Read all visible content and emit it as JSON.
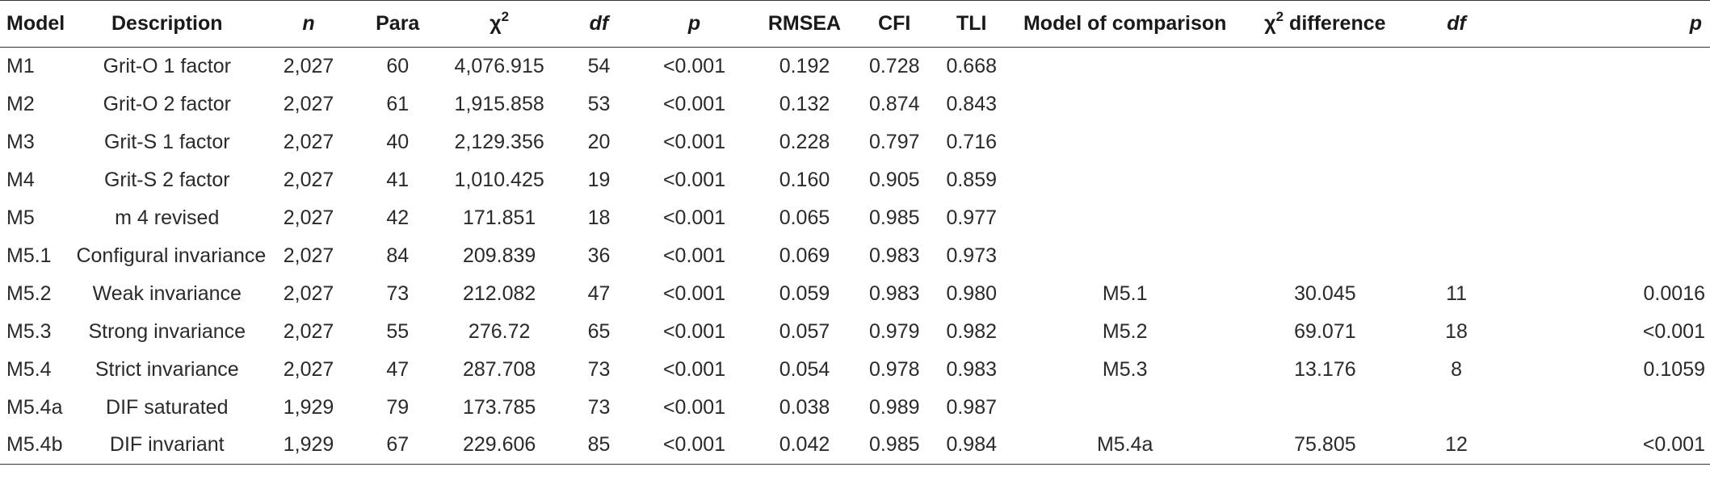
{
  "headers": {
    "model": "Model",
    "description": "Description",
    "n": "n",
    "para": "Para",
    "chi": "χ",
    "chi_sup": "2",
    "df": "df",
    "p": "p",
    "rmsea": "RMSEA",
    "cfi": "CFI",
    "tli": "TLI",
    "comparison": "Model of comparison",
    "chidiff_prefix": "χ",
    "chidiff_sup": "2",
    "chidiff_suffix": " difference",
    "df2": "df",
    "p2": "p"
  },
  "rows": [
    {
      "model": "M1",
      "desc": "Grit-O 1 factor",
      "n": "2,027",
      "para": "60",
      "chi2": "4,076.915",
      "df": "54",
      "p": "<0.001",
      "rmsea": "0.192",
      "cfi": "0.728",
      "tli": "0.668",
      "comp": "",
      "chidiff": "",
      "df2": "",
      "p2": ""
    },
    {
      "model": "M2",
      "desc": "Grit-O 2 factor",
      "n": "2,027",
      "para": "61",
      "chi2": "1,915.858",
      "df": "53",
      "p": "<0.001",
      "rmsea": "0.132",
      "cfi": "0.874",
      "tli": "0.843",
      "comp": "",
      "chidiff": "",
      "df2": "",
      "p2": ""
    },
    {
      "model": "M3",
      "desc": "Grit-S 1 factor",
      "n": "2,027",
      "para": "40",
      "chi2": "2,129.356",
      "df": "20",
      "p": "<0.001",
      "rmsea": "0.228",
      "cfi": "0.797",
      "tli": "0.716",
      "comp": "",
      "chidiff": "",
      "df2": "",
      "p2": ""
    },
    {
      "model": "M4",
      "desc": "Grit-S 2 factor",
      "n": "2,027",
      "para": "41",
      "chi2": "1,010.425",
      "df": "19",
      "p": "<0.001",
      "rmsea": "0.160",
      "cfi": "0.905",
      "tli": "0.859",
      "comp": "",
      "chidiff": "",
      "df2": "",
      "p2": ""
    },
    {
      "model": "M5",
      "desc": "m 4 revised",
      "n": "2,027",
      "para": "42",
      "chi2": "171.851",
      "df": "18",
      "p": "<0.001",
      "rmsea": "0.065",
      "cfi": "0.985",
      "tli": "0.977",
      "comp": "",
      "chidiff": "",
      "df2": "",
      "p2": ""
    },
    {
      "model": "M5.1",
      "desc": "Configural invariance",
      "n": "2,027",
      "para": "84",
      "chi2": "209.839",
      "df": "36",
      "p": "<0.001",
      "rmsea": "0.069",
      "cfi": "0.983",
      "tli": "0.973",
      "comp": "",
      "chidiff": "",
      "df2": "",
      "p2": ""
    },
    {
      "model": "M5.2",
      "desc": "Weak invariance",
      "n": "2,027",
      "para": "73",
      "chi2": "212.082",
      "df": "47",
      "p": "<0.001",
      "rmsea": "0.059",
      "cfi": "0.983",
      "tli": "0.980",
      "comp": "M5.1",
      "chidiff": "30.045",
      "df2": "11",
      "p2": "0.0016"
    },
    {
      "model": "M5.3",
      "desc": "Strong invariance",
      "n": "2,027",
      "para": "55",
      "chi2": "276.72",
      "df": "65",
      "p": "<0.001",
      "rmsea": "0.057",
      "cfi": "0.979",
      "tli": "0.982",
      "comp": "M5.2",
      "chidiff": "69.071",
      "df2": "18",
      "p2": "<0.001"
    },
    {
      "model": "M5.4",
      "desc": "Strict invariance",
      "n": "2,027",
      "para": "47",
      "chi2": "287.708",
      "df": "73",
      "p": "<0.001",
      "rmsea": "0.054",
      "cfi": "0.978",
      "tli": "0.983",
      "comp": "M5.3",
      "chidiff": "13.176",
      "df2": "8",
      "p2": "0.1059"
    },
    {
      "model": "M5.4a",
      "desc": "DIF saturated",
      "n": "1,929",
      "para": "79",
      "chi2": "173.785",
      "df": "73",
      "p": "<0.001",
      "rmsea": "0.038",
      "cfi": "0.989",
      "tli": "0.987",
      "comp": "",
      "chidiff": "",
      "df2": "",
      "p2": ""
    },
    {
      "model": "M5.4b",
      "desc": "DIF invariant",
      "n": "1,929",
      "para": "67",
      "chi2": "229.606",
      "df": "85",
      "p": "<0.001",
      "rmsea": "0.042",
      "cfi": "0.985",
      "tli": "0.984",
      "comp": "M5.4a",
      "chidiff": "75.805",
      "df2": "12",
      "p2": "<0.001"
    }
  ]
}
